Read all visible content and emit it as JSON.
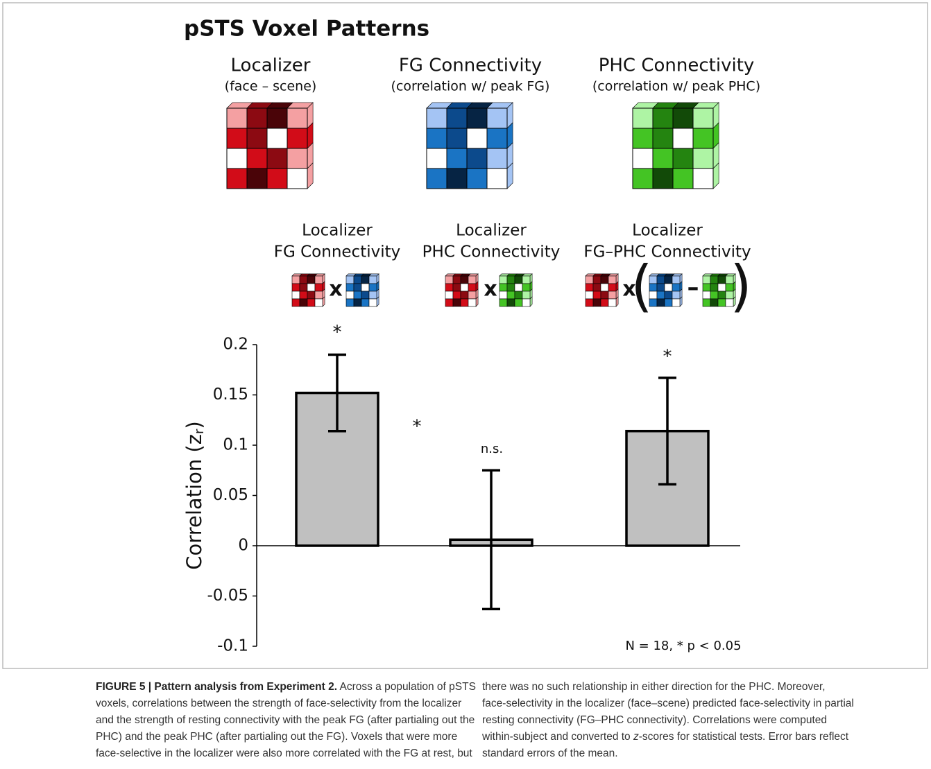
{
  "chart_data": {
    "type": "bar",
    "title": "pSTS Voxel Patterns",
    "panels": [
      {
        "title": "Localizer",
        "subtitle": "(face – scene)"
      },
      {
        "title": "FG Connectivity",
        "subtitle": "(correlation w/ peak FG)"
      },
      {
        "title": "PHC Connectivity",
        "subtitle": "(correlation w/ peak PHC)"
      }
    ],
    "operators": {
      "times": "x",
      "open": "(",
      "minus": "–",
      "close": ")"
    },
    "categories": [
      [
        "Localizer",
        "FG Connectivity"
      ],
      [
        "Localizer",
        "PHC Connectivity"
      ],
      [
        "Localizer",
        "FG–PHC Connectivity"
      ]
    ],
    "values": [
      0.152,
      0.006,
      0.114
    ],
    "errors": [
      0.038,
      0.069,
      0.053
    ],
    "color": "#c0c0c0",
    "y_label": {
      "text": "Correlation (z",
      "subscript": "r",
      "close": ")"
    },
    "ylim": [
      -0.1,
      0.2
    ],
    "yticks": [
      0.2,
      0.15,
      0.1,
      0.05,
      0,
      -0.05,
      -0.1
    ],
    "annotations": [
      "*",
      "*",
      "n.s.",
      "*"
    ],
    "note": "N = 18,  * p < 0.05"
  },
  "caption": {
    "label": "FIGURE 5 | Pattern analysis from Experiment 2.",
    "left": [
      " Across a population of pSTS",
      "voxels, correlations between the strength of face-selectivity from the localizer",
      "and the strength of resting connectivity with the peak FG (after partialing out the",
      "PHC) and the peak PHC (after partialing out the FG). Voxels that were more",
      "face-selective in the localizer were also more correlated with the FG at rest, but"
    ],
    "right": [
      "there was no such relationship in either direction for the PHC. Moreover,",
      "face-selectivity in the localizer (face–scene) predicted face-selectivity in partial",
      "resting connectivity (FG–PHC connectivity). Correlations were computed",
      [
        "within-subject and converted to ",
        "z",
        "-scores for statistical tests. Error bars reflect"
      ],
      "standard errors of the mean."
    ]
  }
}
